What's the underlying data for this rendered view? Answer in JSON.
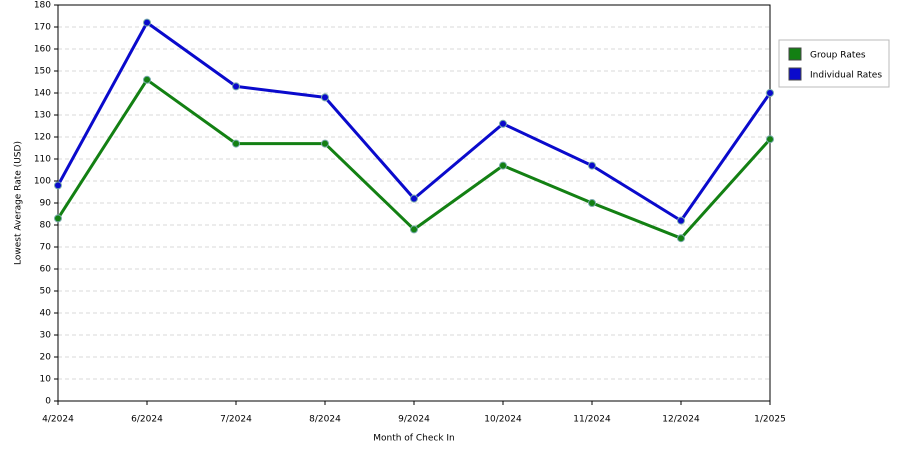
{
  "chart_data": {
    "type": "line",
    "x_label": "Month of Check In",
    "y_label": "Lowest Average Rate (USD)",
    "categories": [
      "4/2024",
      "6/2024",
      "7/2024",
      "8/2024",
      "9/2024",
      "10/2024",
      "11/2024",
      "12/2024",
      "1/2025"
    ],
    "series": [
      {
        "name": "Group Rates",
        "color": "#138013",
        "values": [
          83,
          146,
          117,
          117,
          78,
          107,
          90,
          74,
          119
        ]
      },
      {
        "name": "Individual Rates",
        "color": "#0a0acc",
        "values": [
          98,
          172,
          143,
          138,
          92,
          126,
          107,
          82,
          140
        ]
      }
    ],
    "ylim": [
      0,
      180
    ],
    "yticks": [
      0,
      10,
      20,
      30,
      40,
      50,
      60,
      70,
      80,
      90,
      100,
      110,
      120,
      130,
      140,
      150,
      160,
      170,
      180
    ],
    "grid": true,
    "legend": "right"
  }
}
